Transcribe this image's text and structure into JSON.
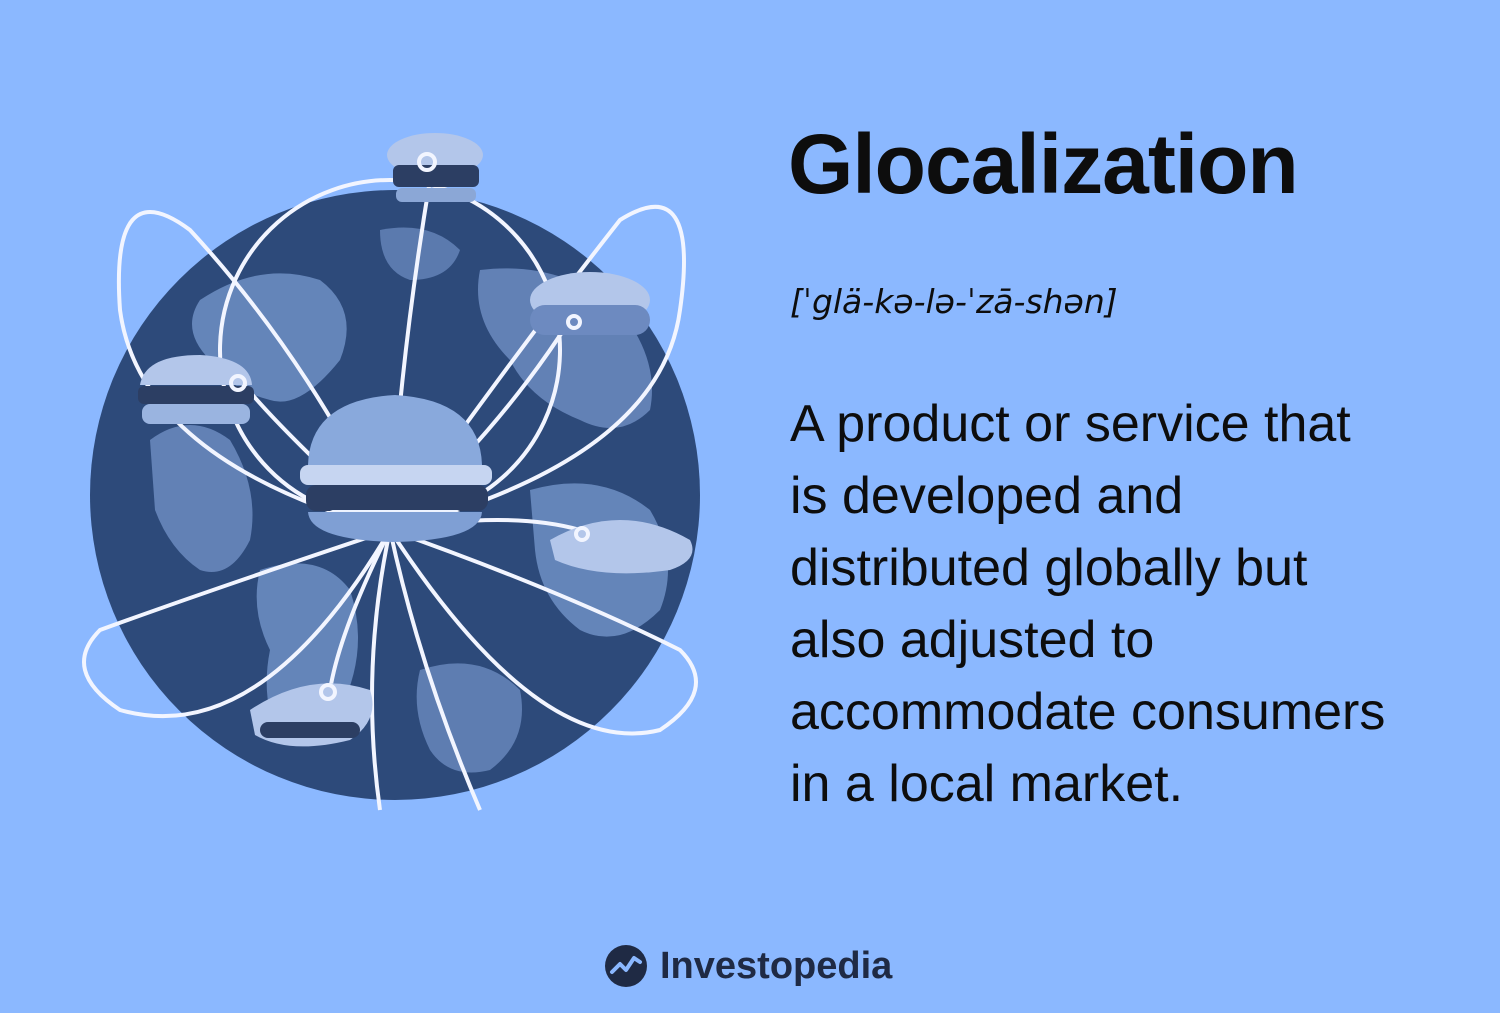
{
  "title": "Glocalization",
  "pronunciation": "[ˈglä-kə-lə-ˈzā-shən]",
  "definition_lines": [
    "A product or service that",
    "is developed and",
    "distributed globally but",
    "also adjusted to",
    "accommodate consumers",
    "in a local market."
  ],
  "brand": {
    "name": "Investopedia",
    "logo_icon": "investopedia-logo-icon"
  },
  "illustration": {
    "globe_icon": "globe-icon",
    "food_icons": [
      "burger-icon",
      "sandwich-icon",
      "hotdog-icon",
      "burrito-icon",
      "pita-icon",
      "burger-icon"
    ],
    "colors": {
      "background": "#8bb8ff",
      "globe_ocean": "#2d4a7a",
      "globe_land": "#6f8fc4",
      "lines": "#f2f5ff"
    }
  }
}
